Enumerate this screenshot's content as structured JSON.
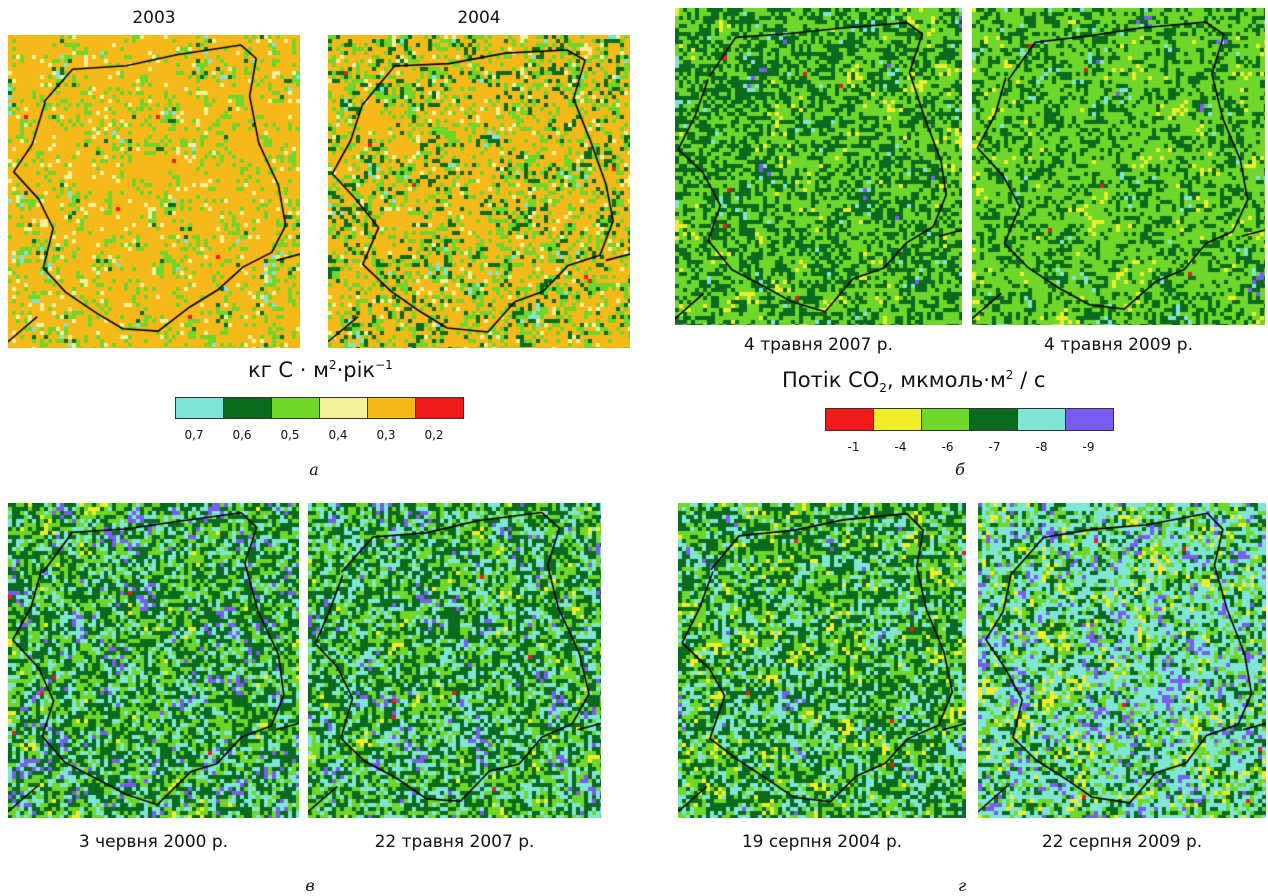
{
  "panel_a": {
    "year_left": "2003",
    "year_right": "2004",
    "legend_title_unit": "кг C · м",
    "legend_title_exp1": "2",
    "legend_title_mid": "·рік",
    "legend_title_exp2": "−1",
    "legend_values": [
      "0,7",
      "0,6",
      "0,5",
      "0,4",
      "0,3",
      "0,2"
    ],
    "legend_colors": [
      "#7fe6d6",
      "#0a6b1e",
      "#6fd62a",
      "#f4f29a",
      "#f6b91a",
      "#ef1a1a"
    ],
    "letter": "а"
  },
  "panel_b": {
    "caption_left": "4 травня 2007 р.",
    "caption_right": "4 травня 2009 р.",
    "legend_title_pre": "Потік CO",
    "legend_title_sub": "2",
    "legend_title_mid": ", мкмоль·м",
    "legend_title_sup": "2",
    "legend_title_post": "/ с",
    "legend_values": [
      "-1",
      "-4",
      "-6",
      "-7",
      "-8",
      "-9"
    ],
    "legend_colors": [
      "#ef1a1a",
      "#f0ee2a",
      "#6fd62a",
      "#0a6b1e",
      "#7fe6d6",
      "#7a5cf0"
    ],
    "letter": "б"
  },
  "panel_c": {
    "caption_left": "3 червня 2000 р.",
    "caption_right": "22 травня 2007 р.",
    "letter": "в"
  },
  "panel_d": {
    "caption_left": "19 серпня 2004 р.",
    "caption_right": "22 серпня 2009 р.",
    "letter": "г"
  }
}
